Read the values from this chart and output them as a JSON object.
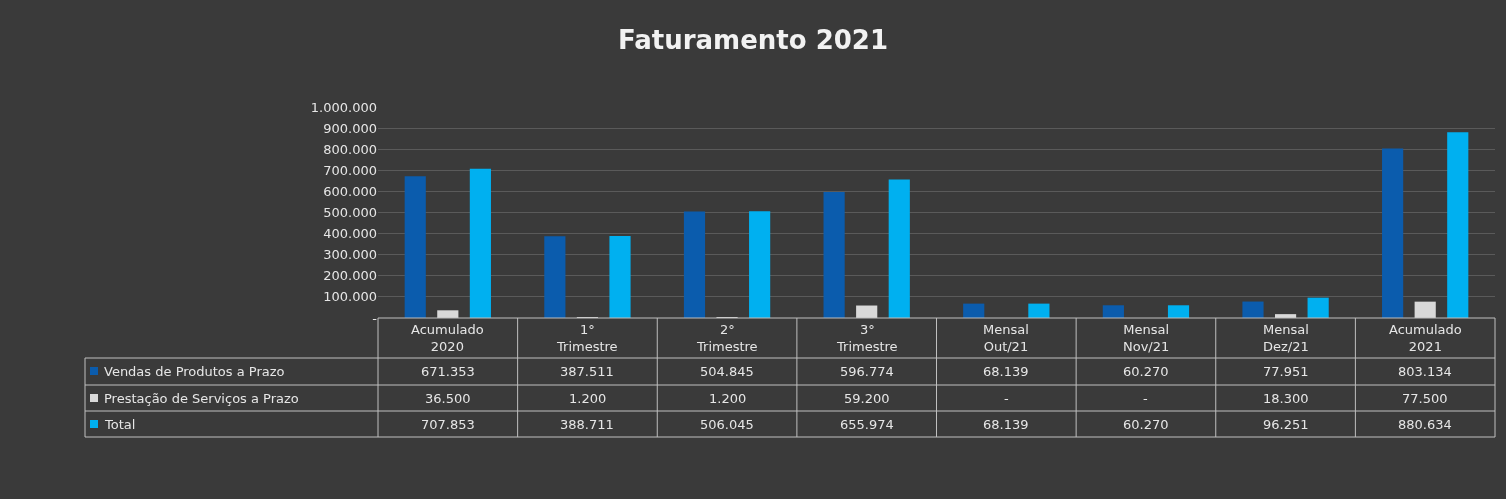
{
  "chart_data": {
    "type": "bar",
    "title": "Faturamento 2021",
    "categories": [
      "Acumulado 2020",
      "1° Trimestre",
      "2° Trimestre",
      "3° Trimestre",
      "Mensal Out/21",
      "Mensal Nov/21",
      "Mensal Dez/21",
      "Acumulado 2021"
    ],
    "series": [
      {
        "name": "Vendas de Produtos a Prazo",
        "color": "#0b5cad",
        "values": [
          671353,
          387511,
          504845,
          596774,
          68139,
          60270,
          77951,
          803134
        ],
        "value_labels": [
          "671.353",
          "387.511",
          "504.845",
          "596.774",
          "68.139",
          "60.270",
          "77.951",
          "803.134"
        ]
      },
      {
        "name": "Prestação de Serviços a Prazo",
        "color": "#d9d9d9",
        "values": [
          36500,
          1200,
          1200,
          59200,
          null,
          null,
          18300,
          77500
        ],
        "value_labels": [
          "36.500",
          "1.200",
          "1.200",
          "59.200",
          "-",
          "-",
          "18.300",
          "77.500"
        ]
      },
      {
        "name": "Total",
        "color": "#00b0f0",
        "values": [
          707853,
          388711,
          506045,
          655974,
          68139,
          60270,
          96251,
          880634
        ],
        "value_labels": [
          "707.853",
          "388.711",
          "506.045",
          "655.974",
          "68.139",
          "60.270",
          "96.251",
          "880.634"
        ]
      }
    ],
    "ylim": [
      0,
      1000000
    ],
    "yticks": [
      {
        "value": 0,
        "label": "-"
      },
      {
        "value": 100000,
        "label": "100.000"
      },
      {
        "value": 200000,
        "label": "200.000"
      },
      {
        "value": 300000,
        "label": "300.000"
      },
      {
        "value": 400000,
        "label": "400.000"
      },
      {
        "value": 500000,
        "label": "500.000"
      },
      {
        "value": 600000,
        "label": "600.000"
      },
      {
        "value": 700000,
        "label": "700.000"
      },
      {
        "value": 800000,
        "label": "800.000"
      },
      {
        "value": 900000,
        "label": "900.000"
      },
      {
        "value": 1000000,
        "label": "1.000.000"
      }
    ],
    "grid": "y",
    "legend": "bottom left"
  }
}
